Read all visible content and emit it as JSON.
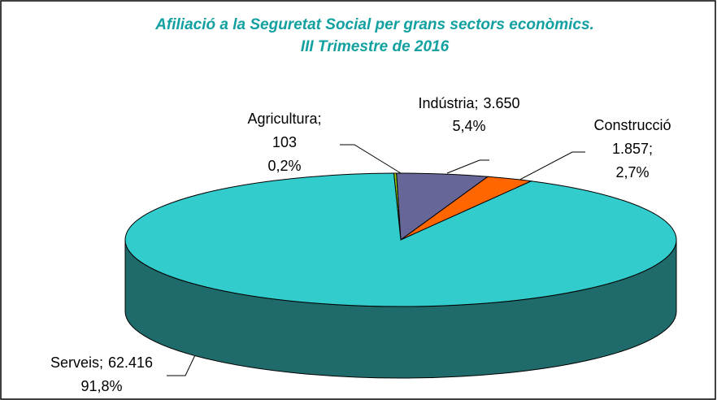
{
  "chart_data": {
    "type": "pie3d",
    "title": [
      "Afiliació a la Seguretat Social per grans sectors econòmics.",
      "III Trimestre de 2016"
    ],
    "categories": [
      "Agricultura",
      "Indústria",
      "Construcció",
      "Serveis"
    ],
    "values": [
      103,
      3650,
      1857,
      62416
    ],
    "value_labels": [
      "103",
      "3.650",
      "1.857",
      "62.416"
    ],
    "percentages": [
      0.2,
      5.4,
      2.7,
      91.8
    ],
    "percentage_labels": [
      "0,2%",
      "5,4%",
      "2,7%",
      "91,8%"
    ],
    "separator": ";",
    "colors": [
      "#99cc00",
      "#666699",
      "#ff6600",
      "#33cccc"
    ],
    "side_colors": [
      "#5c7a00",
      "#3d3d5c",
      "#993d00",
      "#1f6b6b"
    ]
  }
}
